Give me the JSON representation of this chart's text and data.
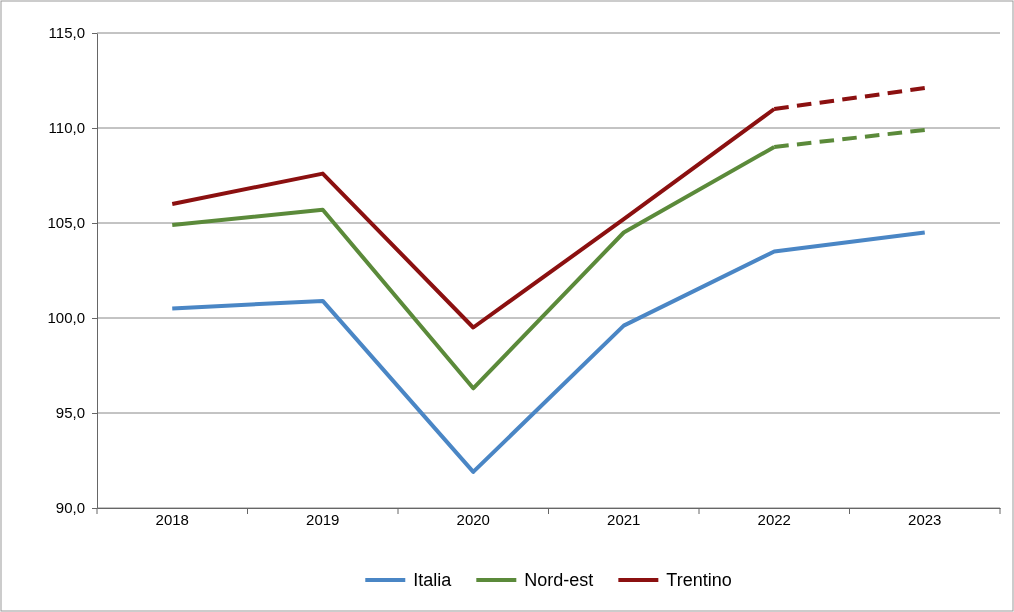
{
  "chart_data": {
    "type": "line",
    "categories": [
      "2018",
      "2019",
      "2020",
      "2021",
      "2022",
      "2023"
    ],
    "series": [
      {
        "name": "Italia",
        "color": "#4a86c5",
        "values": [
          100.5,
          100.9,
          91.9,
          99.6,
          103.5,
          104.5
        ]
      },
      {
        "name": "Nord-est",
        "color": "#5b8a3a",
        "values": [
          104.9,
          105.7,
          96.3,
          104.5,
          109.0,
          null
        ]
      },
      {
        "name": "Trentino",
        "color": "#8b1010",
        "values": [
          106.0,
          107.6,
          99.5,
          105.2,
          111.0,
          null
        ]
      },
      {
        "color": "#5b8a3a",
        "line_style": "dashed",
        "values": [
          null,
          null,
          null,
          null,
          109.0,
          109.9
        ]
      },
      {
        "color": "#8b1010",
        "line_style": "dashed",
        "values": [
          null,
          null,
          null,
          null,
          111.0,
          112.1
        ]
      }
    ],
    "ylim": [
      90,
      115
    ],
    "yticks": [
      {
        "value": 90,
        "label": "90,0"
      },
      {
        "value": 95,
        "label": "95,0"
      },
      {
        "value": 100,
        "label": "100,0"
      },
      {
        "value": 105,
        "label": "105,0"
      },
      {
        "value": 110,
        "label": "110,0"
      },
      {
        "value": 115,
        "label": "115,0"
      }
    ],
    "grid": "y",
    "legend": "bottom",
    "line_style": "solid",
    "marker": "none"
  }
}
